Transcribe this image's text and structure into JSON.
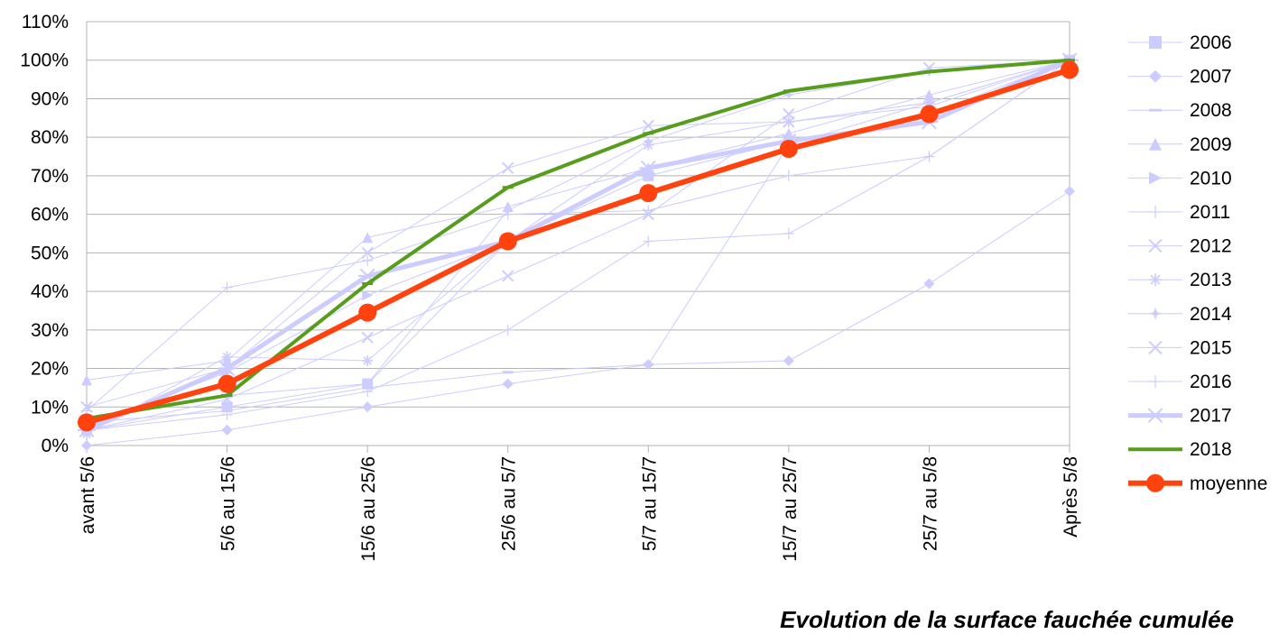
{
  "caption": "Evolution de la surface fauchée cumulée",
  "chart_data": {
    "type": "line",
    "categories": [
      "avant 5/6",
      "5/6 au 15/6",
      "15/6 au 25/6",
      "25/6 au 5/7",
      "5/7 au 15/7",
      "15/7 au 25/7",
      "25/7 au 5/8",
      "Après 5/8"
    ],
    "y_ticks": [
      "0%",
      "10%",
      "20%",
      "30%",
      "40%",
      "50%",
      "60%",
      "70%",
      "80%",
      "90%",
      "100%",
      "110%"
    ],
    "ylim": [
      0,
      110
    ],
    "y_unit": "%",
    "grid": "horizontal",
    "legend_position": "right",
    "colors": {
      "light": "#ccccff",
      "grid": "#b3b3b3",
      "green": "#579d1c",
      "orange": "#ff420e"
    },
    "series": [
      {
        "name": "2006",
        "marker": "square",
        "values": [
          4,
          10,
          16,
          53,
          70,
          79,
          85,
          100
        ]
      },
      {
        "name": "2007",
        "marker": "diamond",
        "values": [
          0,
          4,
          10,
          16,
          21,
          22,
          42,
          66
        ]
      },
      {
        "name": "2008",
        "marker": "dash",
        "values": [
          6,
          9,
          15,
          19,
          21,
          78,
          89,
          100
        ]
      },
      {
        "name": "2009",
        "marker": "triangle",
        "values": [
          17,
          22,
          54,
          62,
          72,
          81,
          91,
          100
        ]
      },
      {
        "name": "2010",
        "marker": "arrow",
        "values": [
          5,
          19,
          39,
          53,
          65,
          77,
          86,
          100
        ]
      },
      {
        "name": "2011",
        "marker": "plus",
        "values": [
          9,
          41,
          48,
          60,
          61,
          70,
          75,
          100
        ]
      },
      {
        "name": "2012",
        "marker": "x",
        "values": [
          4,
          12,
          28,
          44,
          60,
          86,
          98,
          100
        ]
      },
      {
        "name": "2013",
        "marker": "star",
        "values": [
          3,
          23,
          22,
          53,
          78,
          84,
          89,
          100
        ]
      },
      {
        "name": "2014",
        "marker": "star4",
        "values": [
          7,
          13,
          16,
          61,
          79,
          91,
          97,
          100
        ]
      },
      {
        "name": "2015",
        "marker": "x",
        "values": [
          10,
          20,
          50,
          72,
          83,
          84,
          88,
          100
        ]
      },
      {
        "name": "2016",
        "marker": "plus",
        "values": [
          4,
          8,
          14,
          30,
          53,
          55,
          75,
          100
        ]
      },
      {
        "name": "2017",
        "marker": "asterisk",
        "values": [
          4,
          20,
          44,
          53,
          72,
          79,
          84,
          100
        ]
      },
      {
        "name": "2018",
        "marker": "dash",
        "values": [
          7,
          13,
          42,
          67,
          81,
          92,
          97,
          100
        ]
      },
      {
        "name": "moyenne",
        "marker": "circle",
        "values": [
          6,
          16,
          34.5,
          53,
          65.5,
          77,
          86,
          97.5
        ]
      }
    ]
  }
}
